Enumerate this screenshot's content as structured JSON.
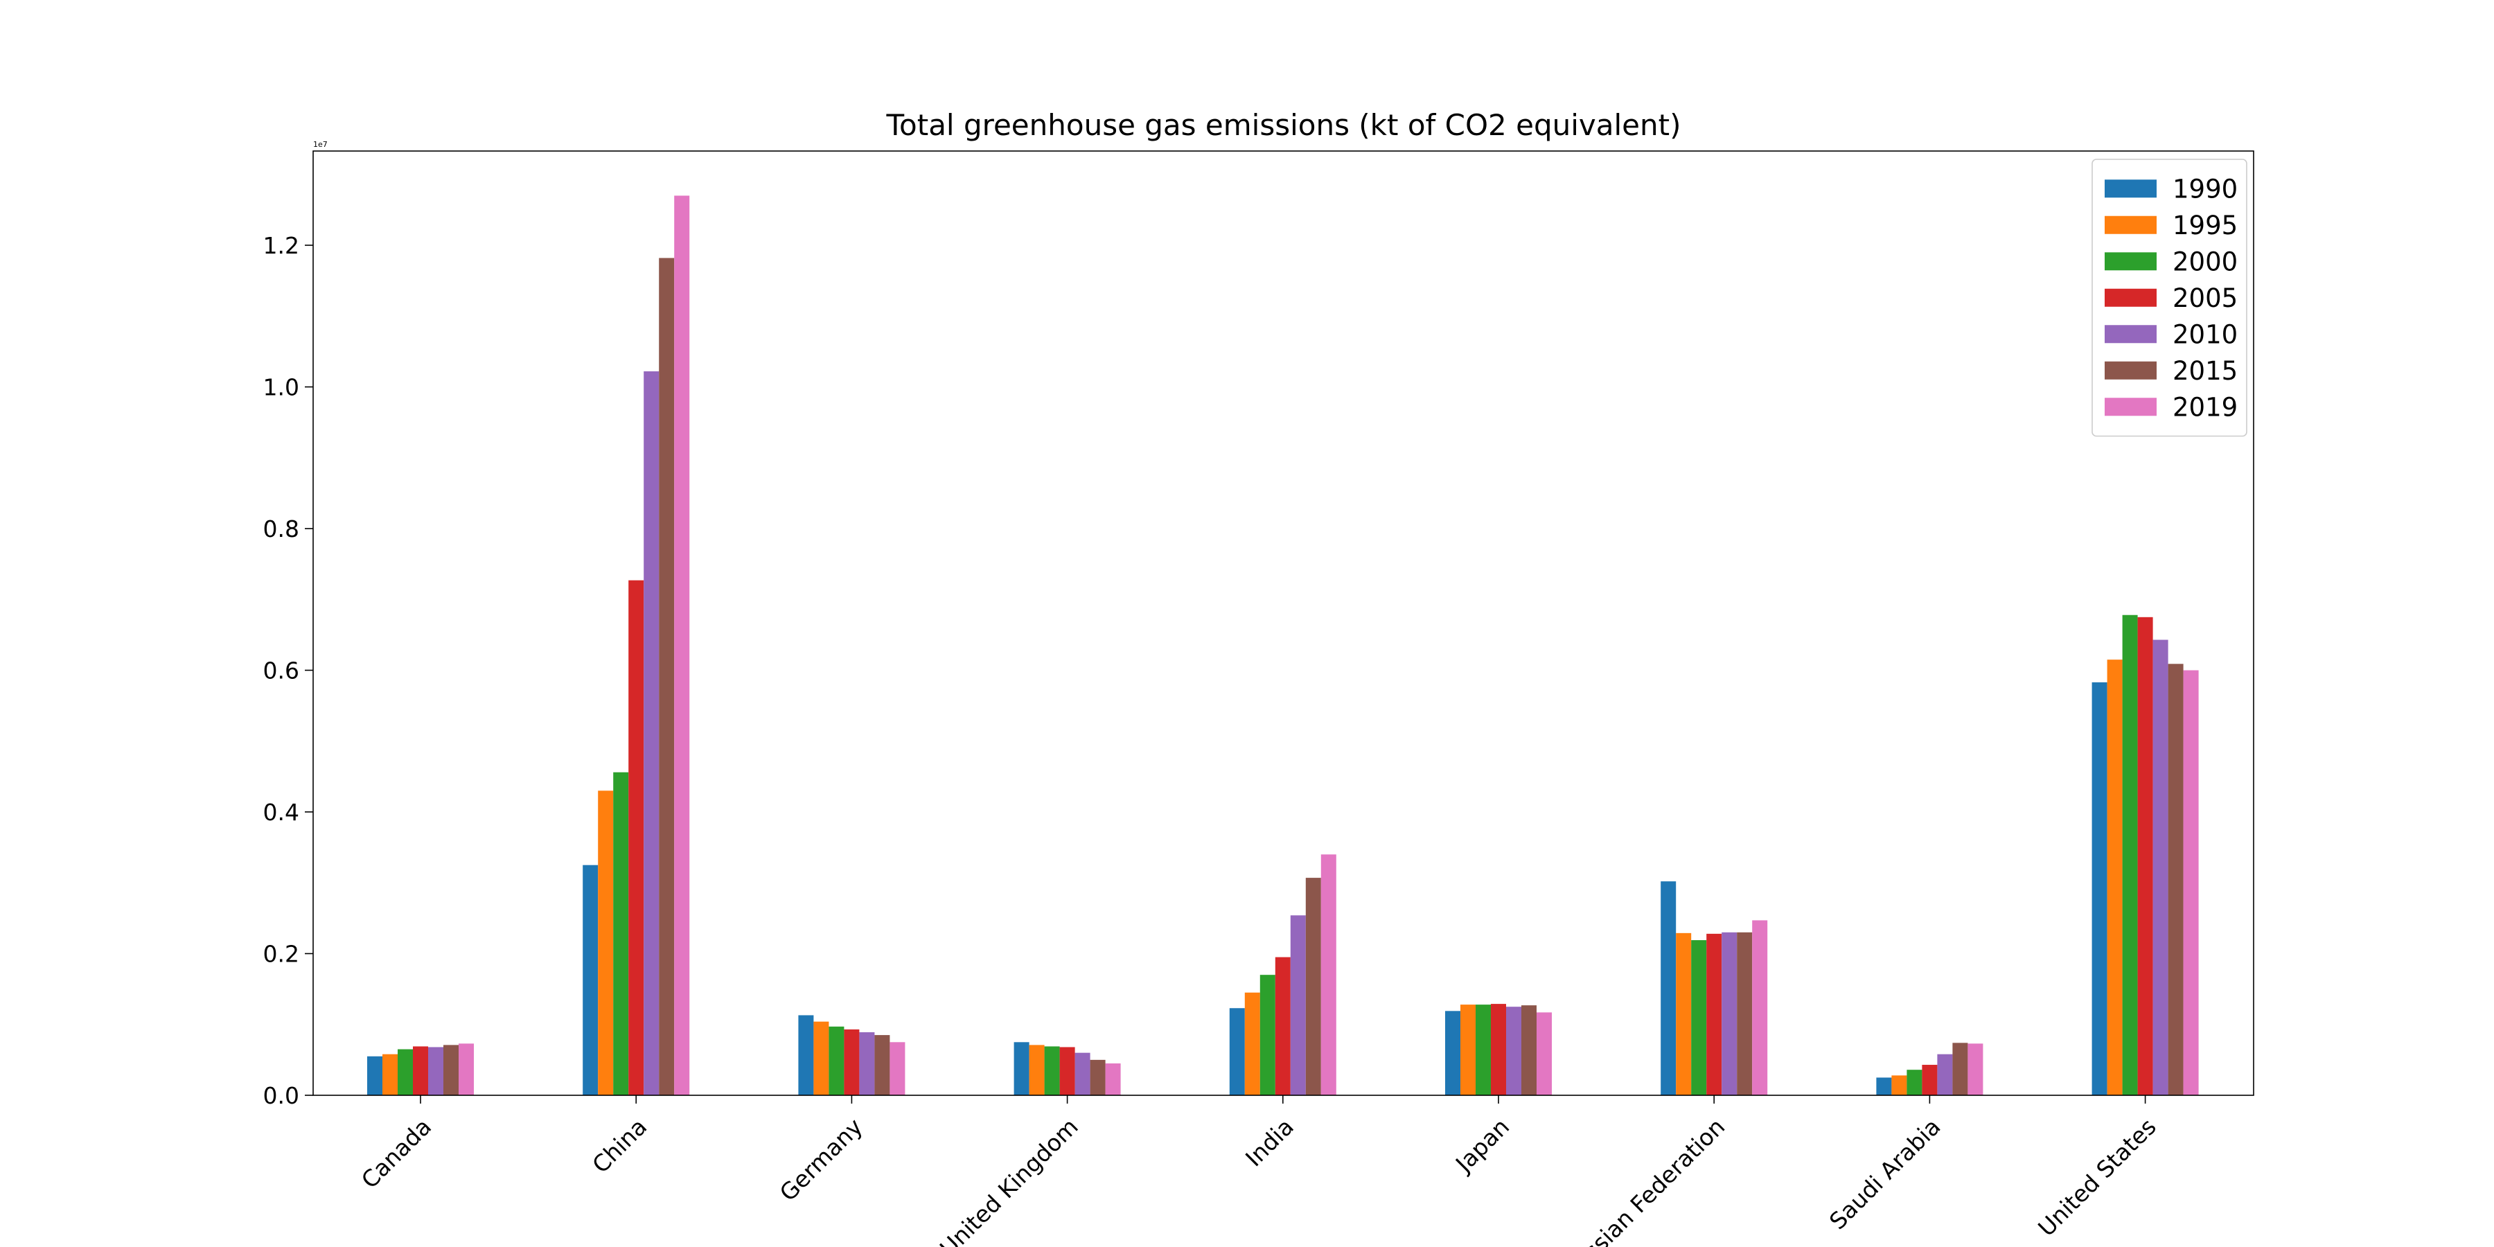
{
  "chart_data": {
    "type": "bar",
    "title": "Total greenhouse gas emissions (kt of CO2 equivalent)",
    "xlabel": "",
    "ylabel": "",
    "axis_offset_label": "1e7",
    "categories": [
      "Canada",
      "China",
      "Germany",
      "United Kingdom",
      "India",
      "Japan",
      "Russian Federation",
      "Saudi Arabia",
      "United States"
    ],
    "series": [
      {
        "name": "1990",
        "color": "#1f77b4",
        "values": [
          0.055,
          0.325,
          0.113,
          0.075,
          0.123,
          0.119,
          0.302,
          0.025,
          0.583
        ]
      },
      {
        "name": "1995",
        "color": "#ff7f0e",
        "values": [
          0.058,
          0.43,
          0.104,
          0.071,
          0.145,
          0.128,
          0.229,
          0.028,
          0.615
        ]
      },
      {
        "name": "2000",
        "color": "#2ca02c",
        "values": [
          0.065,
          0.456,
          0.097,
          0.069,
          0.17,
          0.128,
          0.219,
          0.036,
          0.678
        ]
      },
      {
        "name": "2005",
        "color": "#d62728",
        "values": [
          0.069,
          0.727,
          0.093,
          0.068,
          0.195,
          0.129,
          0.228,
          0.043,
          0.675
        ]
      },
      {
        "name": "2010",
        "color": "#9467bd",
        "values": [
          0.068,
          1.022,
          0.089,
          0.06,
          0.254,
          0.125,
          0.23,
          0.058,
          0.643
        ]
      },
      {
        "name": "2015",
        "color": "#8c564b",
        "values": [
          0.071,
          1.182,
          0.085,
          0.05,
          0.307,
          0.127,
          0.23,
          0.074,
          0.609
        ]
      },
      {
        "name": "2019",
        "color": "#e377c2",
        "values": [
          0.073,
          1.27,
          0.075,
          0.045,
          0.34,
          0.117,
          0.247,
          0.073,
          0.6
        ]
      }
    ],
    "ylim": [
      0,
      1.333
    ],
    "yticks": [
      0.0,
      0.2,
      0.4,
      0.6,
      0.8,
      1.0,
      1.2
    ],
    "ytick_labels": [
      "0.0",
      "0.2",
      "0.4",
      "0.6",
      "0.8",
      "1.0",
      "1.2"
    ],
    "grid": false,
    "legend_position": "top-right"
  }
}
